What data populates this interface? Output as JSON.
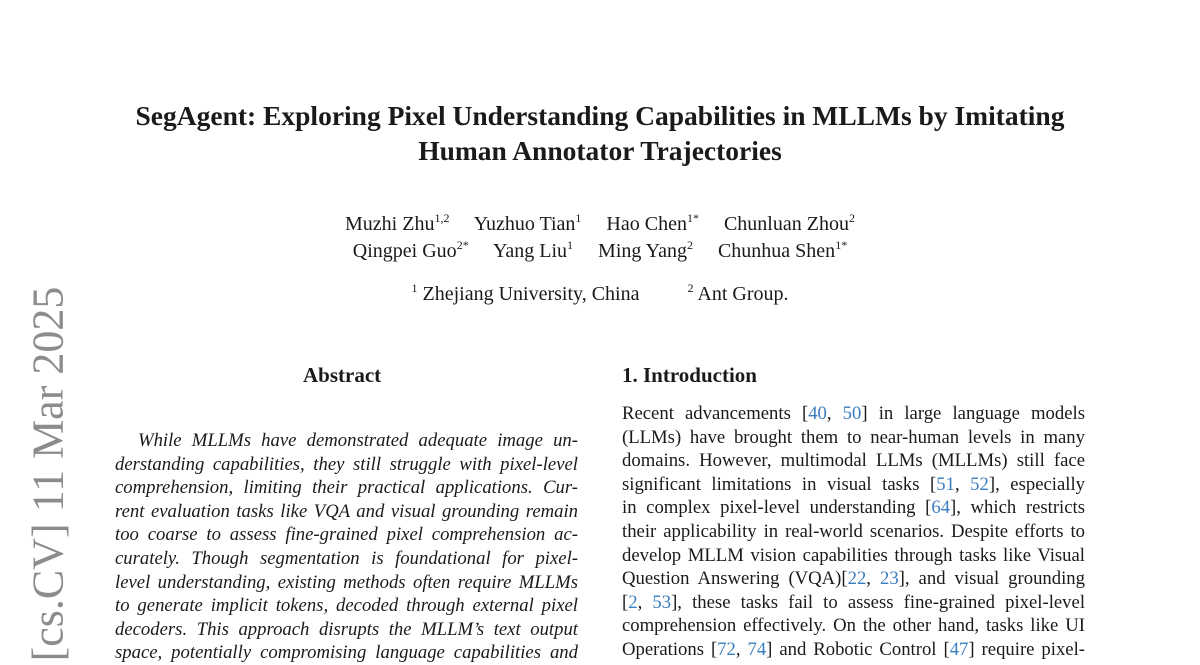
{
  "arxiv_stamp": "[cs.CV]  11 Mar 2025",
  "title_lines": [
    "SegAgent: Exploring Pixel Understanding Capabilities in MLLMs by Imitating",
    "Human Annotator Trajectories"
  ],
  "authors": [
    [
      {
        "name": "Muzhi Zhu",
        "sup": "1,2"
      },
      {
        "name": "Yuzhuo Tian",
        "sup": "1"
      },
      {
        "name": "Hao Chen",
        "sup": "1*"
      },
      {
        "name": "Chunluan Zhou",
        "sup": "2"
      }
    ],
    [
      {
        "name": "Qingpei Guo",
        "sup": "2*"
      },
      {
        "name": "Yang Liu",
        "sup": "1"
      },
      {
        "name": "Ming Yang",
        "sup": "2"
      },
      {
        "name": "Chunhua Shen",
        "sup": "1*"
      }
    ]
  ],
  "affiliations": [
    {
      "sup": "1",
      "name": "Zhejiang University, China"
    },
    {
      "sup": "2",
      "name": "Ant Group."
    }
  ],
  "abstract": {
    "heading": "Abstract",
    "lines": [
      "While MLLMs have demonstrated adequate image un-",
      "derstanding capabilities, they still struggle with pixel-level",
      "comprehension, limiting their practical applications.  Cur-",
      "rent evaluation tasks like VQA and visual grounding remain",
      "too coarse to assess fine-grained pixel comprehension ac-",
      "curately.  Though segmentation is foundational for pixel-",
      "level understanding, existing methods often require MLLMs",
      "to generate implicit tokens, decoded through external pixel",
      "decoders.  This approach disrupts the MLLM’s text output",
      "space, potentially compromising language capabilities and"
    ]
  },
  "introduction": {
    "heading": "1. Introduction",
    "lines": [
      [
        {
          "t": "Recent advancements ["
        },
        {
          "t": "40",
          "c": 1
        },
        {
          "t": ", "
        },
        {
          "t": "50",
          "c": 1
        },
        {
          "t": "] in large language models"
        }
      ],
      [
        {
          "t": "(LLMs) have brought them to near-human levels in many"
        }
      ],
      [
        {
          "t": "domains.  However, multimodal LLMs (MLLMs) still face"
        }
      ],
      [
        {
          "t": "significant limitations in visual tasks ["
        },
        {
          "t": "51",
          "c": 1
        },
        {
          "t": ", "
        },
        {
          "t": "52",
          "c": 1
        },
        {
          "t": "], especially"
        }
      ],
      [
        {
          "t": "in complex pixel-level understanding ["
        },
        {
          "t": "64",
          "c": 1
        },
        {
          "t": "], which restricts"
        }
      ],
      [
        {
          "t": "their applicability in real-world scenarios. Despite efforts to"
        }
      ],
      [
        {
          "t": "develop MLLM vision capabilities through tasks like Visual"
        }
      ],
      [
        {
          "t": "Question Answering (VQA)["
        },
        {
          "t": "22",
          "c": 1
        },
        {
          "t": ", "
        },
        {
          "t": "23",
          "c": 1
        },
        {
          "t": "], and visual grounding"
        }
      ],
      [
        {
          "t": "["
        },
        {
          "t": "2",
          "c": 1
        },
        {
          "t": ", "
        },
        {
          "t": "53",
          "c": 1
        },
        {
          "t": "], these tasks fail to assess fine-grained pixel-level"
        }
      ],
      [
        {
          "t": "comprehension effectively. On the other hand, tasks like UI"
        }
      ],
      [
        {
          "t": "Operations ["
        },
        {
          "t": "72",
          "c": 1
        },
        {
          "t": ", "
        },
        {
          "t": "74",
          "c": 1
        },
        {
          "t": "] and Robotic Control ["
        },
        {
          "t": "47",
          "c": 1
        },
        {
          "t": "] require pixel-"
        }
      ]
    ]
  },
  "colors": {
    "citation": "#3a7dbf",
    "stamp": "#8c8c8c"
  }
}
